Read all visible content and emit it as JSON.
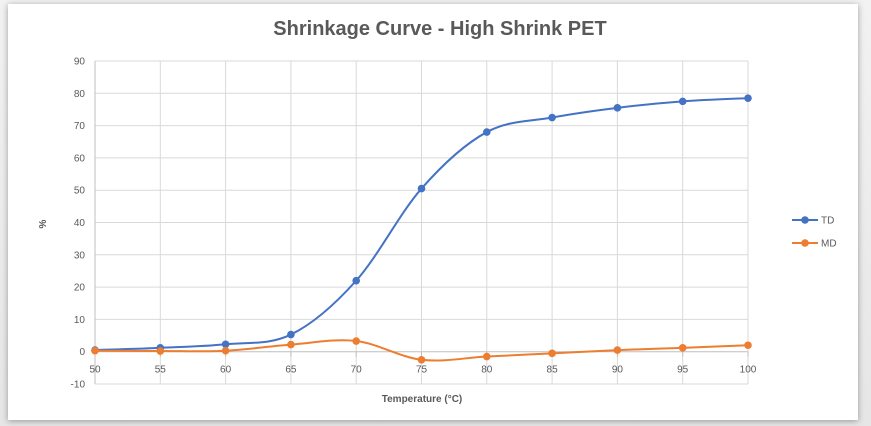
{
  "chart_data": {
    "type": "line",
    "title": "Shrinkage Curve - High Shrink PET",
    "xlabel": "Temperature (°C)",
    "ylabel": "%",
    "x": [
      50,
      55,
      60,
      65,
      70,
      75,
      80,
      85,
      90,
      95,
      100
    ],
    "x_ticks": [
      "50",
      "55",
      "60",
      "65",
      "70",
      "75",
      "80",
      "85",
      "90",
      "95",
      "100"
    ],
    "y_ticks": [
      "-10",
      "0",
      "10",
      "20",
      "30",
      "40",
      "50",
      "60",
      "70",
      "80",
      "90"
    ],
    "xlim": [
      50,
      100
    ],
    "ylim": [
      -10,
      90
    ],
    "grid": true,
    "legend_position": "right",
    "smooth": true,
    "series": [
      {
        "name": "TD",
        "color": "#4472c4",
        "values": [
          0.5,
          1.2,
          2.3,
          5.3,
          22,
          50.5,
          68,
          72.5,
          75.5,
          77.5,
          78.5
        ]
      },
      {
        "name": "MD",
        "color": "#ed7d31",
        "values": [
          0.3,
          0.2,
          0.3,
          2.2,
          3.3,
          -2.5,
          -1.5,
          -0.5,
          0.5,
          1.2,
          2
        ]
      }
    ]
  }
}
